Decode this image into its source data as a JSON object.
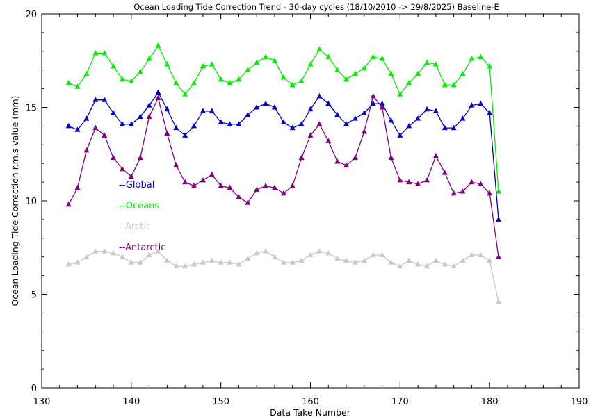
{
  "chart_data": {
    "type": "line",
    "title": "Ocean Loading Tide Correction Trend - 30-day cycles (18/10/2010 -> 29/8/2025) Baseline-E",
    "xlabel": "Data Take Number",
    "ylabel": "Ocean Loading Tide Correction r.m.s value (mm)",
    "xlim": [
      130,
      190
    ],
    "ylim": [
      0,
      20
    ],
    "xticks": [
      130,
      140,
      150,
      160,
      170,
      180,
      190
    ],
    "yticks": [
      0,
      5,
      10,
      15,
      20
    ],
    "grid": false,
    "legend_position": "inside-left",
    "x": [
      133,
      134,
      135,
      136,
      137,
      138,
      139,
      140,
      141,
      142,
      143,
      144,
      145,
      146,
      147,
      148,
      149,
      150,
      151,
      152,
      153,
      154,
      155,
      156,
      157,
      158,
      159,
      160,
      161,
      162,
      163,
      164,
      165,
      166,
      167,
      168,
      169,
      170,
      171,
      172,
      173,
      174,
      175,
      176,
      177,
      178,
      179,
      180,
      181
    ],
    "series": [
      {
        "name": "Global",
        "legend_label": "--Global",
        "color": "#0000cc",
        "values": [
          14.0,
          13.8,
          14.4,
          15.4,
          15.4,
          14.7,
          14.1,
          14.1,
          14.5,
          15.1,
          15.8,
          14.9,
          13.9,
          13.5,
          14.0,
          14.8,
          14.8,
          14.2,
          14.1,
          14.1,
          14.6,
          15.0,
          15.2,
          15.0,
          14.2,
          13.9,
          14.1,
          14.9,
          15.6,
          15.2,
          14.6,
          14.1,
          14.4,
          14.7,
          15.2,
          15.2,
          14.3,
          13.5,
          14.0,
          14.4,
          14.9,
          14.8,
          13.9,
          13.9,
          14.4,
          15.1,
          15.2,
          14.7,
          9.0
        ]
      },
      {
        "name": "Oceans",
        "legend_label": "--Oceans",
        "color": "#00ee00",
        "values": [
          16.3,
          16.1,
          16.8,
          17.9,
          17.9,
          17.2,
          16.5,
          16.4,
          16.9,
          17.6,
          18.3,
          17.3,
          16.3,
          15.7,
          16.3,
          17.2,
          17.3,
          16.5,
          16.3,
          16.5,
          17.0,
          17.4,
          17.7,
          17.5,
          16.6,
          16.2,
          16.4,
          17.3,
          18.1,
          17.7,
          17.0,
          16.5,
          16.8,
          17.1,
          17.7,
          17.6,
          16.8,
          15.7,
          16.3,
          16.8,
          17.4,
          17.3,
          16.2,
          16.2,
          16.8,
          17.6,
          17.7,
          17.2,
          10.5
        ]
      },
      {
        "name": "Arctic",
        "legend_label": "--Arctic",
        "color": "#c8c8c8",
        "values": [
          6.6,
          6.7,
          7.0,
          7.3,
          7.3,
          7.2,
          7.0,
          6.7,
          6.7,
          7.1,
          7.3,
          6.8,
          6.5,
          6.5,
          6.6,
          6.7,
          6.8,
          6.7,
          6.7,
          6.6,
          6.9,
          7.2,
          7.3,
          7.0,
          6.7,
          6.7,
          6.8,
          7.1,
          7.3,
          7.2,
          6.9,
          6.8,
          6.7,
          6.8,
          7.1,
          7.1,
          6.7,
          6.5,
          6.8,
          6.6,
          6.5,
          6.8,
          6.6,
          6.5,
          6.8,
          7.1,
          7.1,
          6.8,
          4.6
        ]
      },
      {
        "name": "Antarctic",
        "legend_label": "--Antarctic",
        "color": "#800080",
        "values": [
          9.8,
          10.7,
          12.7,
          13.9,
          13.5,
          12.3,
          11.7,
          11.3,
          12.3,
          14.5,
          15.5,
          13.6,
          11.9,
          11.0,
          10.8,
          11.1,
          11.4,
          10.8,
          10.7,
          10.2,
          9.9,
          10.6,
          10.8,
          10.7,
          10.4,
          10.8,
          12.3,
          13.5,
          14.1,
          13.2,
          12.1,
          11.9,
          12.3,
          13.7,
          15.6,
          15.0,
          12.3,
          11.1,
          11.0,
          10.9,
          11.1,
          12.4,
          11.5,
          10.4,
          10.5,
          11.0,
          10.9,
          10.4,
          7.0
        ]
      }
    ]
  }
}
